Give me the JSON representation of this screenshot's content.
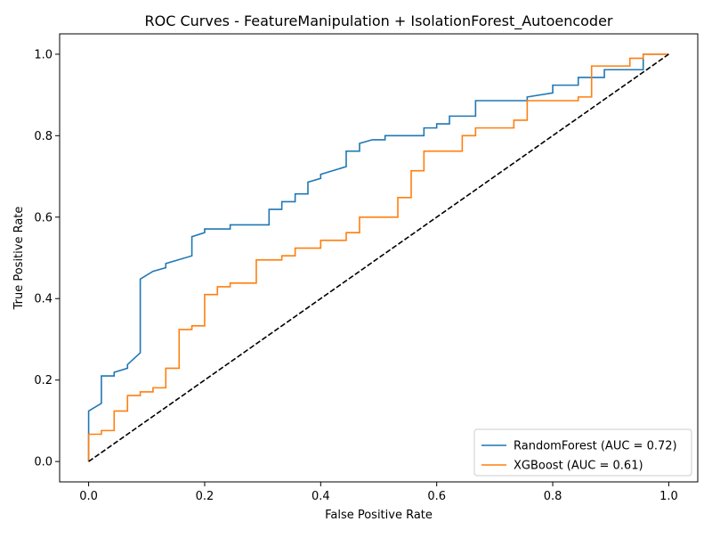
{
  "chart_data": {
    "type": "line",
    "title": "ROC Curves - FeatureManipulation + IsolationForest_Autoencoder",
    "xlabel": "False Positive Rate",
    "ylabel": "True Positive Rate",
    "xlim": [
      -0.05,
      1.05
    ],
    "ylim": [
      -0.05,
      1.05
    ],
    "xticks": [
      0.0,
      0.2,
      0.4,
      0.6,
      0.8,
      1.0
    ],
    "yticks": [
      0.0,
      0.2,
      0.4,
      0.6,
      0.8,
      1.0
    ],
    "tick_labels_x": [
      "0.0",
      "0.2",
      "0.4",
      "0.6",
      "0.8",
      "1.0"
    ],
    "tick_labels_y": [
      "0.0",
      "0.2",
      "0.4",
      "0.6",
      "0.8",
      "1.0"
    ],
    "grid": false,
    "legend_position": "lower-right",
    "series": [
      {
        "name": "RandomForest (AUC = 0.72)",
        "color": "#1f77b4",
        "style": "solid",
        "x": [
          0,
          0,
          0,
          0.022,
          0.022,
          0.022,
          0.044,
          0.044,
          0.067,
          0.067,
          0.089,
          0.089,
          0.111,
          0.133,
          0.133,
          0.178,
          0.178,
          0.2,
          0.2,
          0.244,
          0.244,
          0.311,
          0.311,
          0.333,
          0.333,
          0.356,
          0.356,
          0.378,
          0.378,
          0.4,
          0.4,
          0.444,
          0.444,
          0.467,
          0.467,
          0.489,
          0.511,
          0.511,
          0.578,
          0.578,
          0.6,
          0.6,
          0.622,
          0.622,
          0.667,
          0.667,
          0.756,
          0.756,
          0.8,
          0.8,
          0.844,
          0.844,
          0.889,
          0.889,
          0.956,
          0.956,
          1.0
        ],
        "y": [
          0,
          0.067,
          0.124,
          0.143,
          0.171,
          0.21,
          0.21,
          0.219,
          0.229,
          0.238,
          0.267,
          0.448,
          0.467,
          0.476,
          0.486,
          0.505,
          0.552,
          0.562,
          0.571,
          0.571,
          0.581,
          0.581,
          0.619,
          0.619,
          0.638,
          0.638,
          0.657,
          0.657,
          0.686,
          0.695,
          0.705,
          0.724,
          0.762,
          0.762,
          0.781,
          0.79,
          0.79,
          0.8,
          0.8,
          0.819,
          0.819,
          0.829,
          0.829,
          0.848,
          0.848,
          0.886,
          0.886,
          0.895,
          0.905,
          0.924,
          0.924,
          0.943,
          0.943,
          0.962,
          0.962,
          1.0,
          1.0
        ]
      },
      {
        "name": "XGBoost (AUC = 0.61)",
        "color": "#ff7f0e",
        "style": "solid",
        "x": [
          0,
          0,
          0.022,
          0.022,
          0.044,
          0.044,
          0.067,
          0.067,
          0.089,
          0.089,
          0.111,
          0.111,
          0.133,
          0.133,
          0.156,
          0.156,
          0.178,
          0.178,
          0.2,
          0.2,
          0.222,
          0.222,
          0.244,
          0.244,
          0.289,
          0.289,
          0.333,
          0.333,
          0.356,
          0.356,
          0.4,
          0.4,
          0.444,
          0.444,
          0.467,
          0.467,
          0.533,
          0.533,
          0.556,
          0.556,
          0.578,
          0.578,
          0.644,
          0.644,
          0.667,
          0.667,
          0.733,
          0.733,
          0.756,
          0.756,
          0.844,
          0.844,
          0.867,
          0.867,
          0.933,
          0.933,
          0.956,
          0.956,
          1.0
        ],
        "y": [
          0,
          0.067,
          0.067,
          0.076,
          0.076,
          0.124,
          0.124,
          0.162,
          0.162,
          0.171,
          0.171,
          0.181,
          0.181,
          0.229,
          0.229,
          0.324,
          0.324,
          0.333,
          0.333,
          0.41,
          0.41,
          0.429,
          0.429,
          0.438,
          0.438,
          0.495,
          0.495,
          0.505,
          0.505,
          0.524,
          0.524,
          0.543,
          0.543,
          0.562,
          0.562,
          0.6,
          0.6,
          0.648,
          0.648,
          0.714,
          0.714,
          0.762,
          0.762,
          0.8,
          0.8,
          0.819,
          0.819,
          0.838,
          0.838,
          0.886,
          0.886,
          0.895,
          0.895,
          0.971,
          0.971,
          0.99,
          0.99,
          1.0,
          1.0
        ]
      },
      {
        "name": "",
        "color": "#000000",
        "style": "dashed",
        "x": [
          0,
          1
        ],
        "y": [
          0,
          1
        ]
      }
    ]
  }
}
